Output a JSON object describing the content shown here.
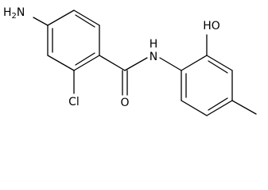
{
  "atoms": {
    "amine": {
      "main": "H",
      "sub": "2",
      "tail": "N"
    },
    "chlorine": "Cl",
    "oxygen": "O",
    "nitrogen": "N",
    "nitrogen_h": "H",
    "hydroxyl": "HO"
  }
}
